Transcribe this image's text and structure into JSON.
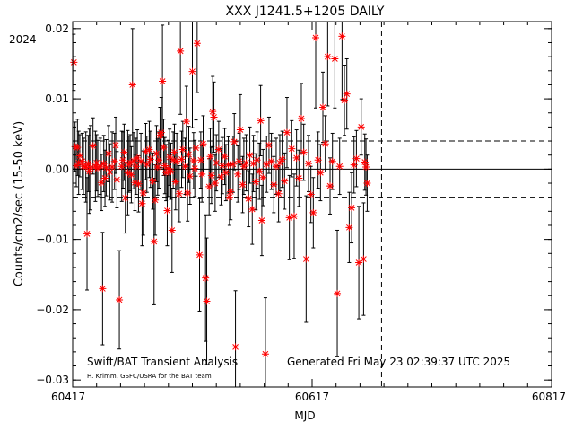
{
  "chart_data": {
    "type": "scatter",
    "title": "XXX J1241.5+1205 DAILY",
    "xlabel": "MJD",
    "ylabel": "Counts/cm2/sec (15-50 keV)",
    "year_label": "2024",
    "xlim": [
      60417,
      60817
    ],
    "ylim": [
      -0.031,
      0.021
    ],
    "x_ticks": [
      60417,
      60617,
      60817
    ],
    "y_ticks": [
      -0.03,
      -0.02,
      -0.01,
      0.0,
      0.01,
      0.02
    ],
    "y_tick_labels": [
      "−0.03",
      "−0.02",
      "−0.01",
      "0.00",
      "0.01",
      "0.02"
    ],
    "mean_line": 0.0,
    "sigma_lines": [
      0.004,
      -0.004
    ],
    "vertical_marker_mjd": 60675,
    "footer_left": "Swift/BAT Transient Analysis",
    "footer_credit": "H. Krimm, GSFC/USRA for the BAT team",
    "footer_right": "Generated Fri May 23 02:39:37 UTC 2025",
    "colors": {
      "points": "#ff0000",
      "errorbars": "#000000"
    },
    "series": [
      {
        "points": [
          [
            60418,
            0.0152,
            0.004
          ],
          [
            60419,
            0.0032,
            0.0035
          ],
          [
            60420,
            0.0005,
            0.003
          ],
          [
            60421,
            0.0031,
            0.004
          ],
          [
            60422,
            0.0009,
            0.0045
          ],
          [
            60423,
            0.0019,
            0.003
          ],
          [
            60425,
            0.0011,
            0.004
          ],
          [
            60426,
            0.0004,
            0.004
          ],
          [
            60428,
            0.0003,
            0.005
          ],
          [
            60429,
            -0.0092,
            0.008
          ],
          [
            60430,
            0.0008,
            0.004
          ],
          [
            60431,
            -0.0003,
            0.006
          ],
          [
            60432,
            0.0002,
            0.006
          ],
          [
            60434,
            0.0033,
            0.004
          ],
          [
            60436,
            0.0004,
            0.005
          ],
          [
            60437,
            0.0009,
            0.004
          ],
          [
            60438,
            0.0001,
            0.004
          ],
          [
            60440,
            0.0004,
            0.004
          ],
          [
            60441,
            -0.0019,
            0.004
          ],
          [
            60442,
            -0.017,
            0.008
          ],
          [
            60443,
            0.0008,
            0.004
          ],
          [
            60444,
            -0.0013,
            0.004
          ],
          [
            60445,
            0.0002,
            0.004
          ],
          [
            60447,
            0.0022,
            0.004
          ],
          [
            60448,
            -0.0004,
            0.004
          ],
          [
            60450,
            0.0003,
            0.005
          ],
          [
            60452,
            0.0011,
            0.004
          ],
          [
            60453,
            0.0034,
            0.004
          ],
          [
            60454,
            -0.0015,
            0.004
          ],
          [
            60456,
            -0.0186,
            0.007
          ],
          [
            60458,
            0.0004,
            0.005
          ],
          [
            60459,
            0.0013,
            0.004
          ],
          [
            60460,
            0.0024,
            0.004
          ],
          [
            60461,
            -0.0041,
            0.005
          ],
          [
            60463,
            -0.0005,
            0.006
          ],
          [
            60464,
            0.0007,
            0.004
          ],
          [
            60465,
            0.0009,
            0.004
          ],
          [
            60466,
            -0.0008,
            0.004
          ],
          [
            60467,
            0.012,
            0.008
          ],
          [
            60468,
            0.0012,
            0.004
          ],
          [
            60469,
            -0.0019,
            0.004
          ],
          [
            60470,
            0.0004,
            0.004
          ],
          [
            60471,
            0.0016,
            0.004
          ],
          [
            60472,
            -0.0021,
            0.004
          ],
          [
            60474,
            0.0011,
            0.004
          ],
          [
            60475,
            -0.0049,
            0.006
          ],
          [
            60476,
            -0.0034,
            0.006
          ],
          [
            60478,
            0.0025,
            0.004
          ],
          [
            60479,
            0.0007,
            0.004
          ],
          [
            60481,
            0.0028,
            0.004
          ],
          [
            60482,
            0.0014,
            0.004
          ],
          [
            60484,
            -0.0017,
            0.004
          ],
          [
            60485,
            -0.0103,
            0.009
          ],
          [
            60486,
            -0.0044,
            0.005
          ],
          [
            60487,
            0.0022,
            0.004
          ],
          [
            60488,
            0.0003,
            0.004
          ],
          [
            60489,
            0.0013,
            0.004
          ],
          [
            60490,
            0.0048,
            0.004
          ],
          [
            60491,
            0.0052,
            0.005
          ],
          [
            60492,
            0.0125,
            0.008
          ],
          [
            60493,
            0.0031,
            0.004
          ],
          [
            60494,
            0.0005,
            0.004
          ],
          [
            60495,
            -0.0005,
            0.004
          ],
          [
            60496,
            -0.0059,
            0.005
          ],
          [
            60497,
            0.0001,
            0.004
          ],
          [
            60498,
            0.0017,
            0.004
          ],
          [
            60499,
            -0.0003,
            0.004
          ],
          [
            60500,
            -0.0087,
            0.006
          ],
          [
            60501,
            0.0013,
            0.004
          ],
          [
            60502,
            0.0024,
            0.004
          ],
          [
            60503,
            -0.0018,
            0.004
          ],
          [
            60504,
            0.0011,
            0.004
          ],
          [
            60506,
            -0.0035,
            0.004
          ],
          [
            60507,
            0.0168,
            0.009
          ],
          [
            60508,
            0.0014,
            0.004
          ],
          [
            60509,
            0.0028,
            0.004
          ],
          [
            60511,
            0.0004,
            0.004
          ],
          [
            60512,
            0.0068,
            0.005
          ],
          [
            60513,
            -0.0034,
            0.004
          ],
          [
            60514,
            0.0021,
            0.004
          ],
          [
            60515,
            -0.001,
            0.004
          ],
          [
            60517,
            0.0139,
            0.008
          ],
          [
            60518,
            0.0012,
            0.004
          ],
          [
            60519,
            0.0001,
            0.004
          ],
          [
            60520,
            0.003,
            0.004
          ],
          [
            60521,
            0.0179,
            0.007
          ],
          [
            60523,
            -0.0122,
            0.008
          ],
          [
            60524,
            0.0013,
            0.004
          ],
          [
            60525,
            -0.0007,
            0.004
          ],
          [
            60526,
            0.0036,
            0.004
          ],
          [
            60528,
            -0.0155,
            0.009
          ],
          [
            60529,
            -0.0188,
            0.009
          ],
          [
            60531,
            -0.0025,
            0.004
          ],
          [
            60532,
            0.0018,
            0.004
          ],
          [
            60533,
            -0.0009,
            0.004
          ],
          [
            60534,
            0.0082,
            0.005
          ],
          [
            60535,
            0.0074,
            0.005
          ],
          [
            60536,
            -0.002,
            0.004
          ],
          [
            60537,
            0.0009,
            0.004
          ],
          [
            60539,
            0.0028,
            0.004
          ],
          [
            60541,
            -0.0011,
            0.004
          ],
          [
            60542,
            0.0005,
            0.004
          ],
          [
            60544,
            0.0018,
            0.004
          ],
          [
            60545,
            -0.0005,
            0.004
          ],
          [
            60547,
            0.0006,
            0.004
          ],
          [
            60548,
            -0.004,
            0.004
          ],
          [
            60549,
            -0.0032,
            0.004
          ],
          [
            60551,
            0.0007,
            0.004
          ],
          [
            60552,
            0.0039,
            0.004
          ],
          [
            60553,
            -0.0253,
            0.008
          ],
          [
            60555,
            -0.0007,
            0.004
          ],
          [
            60556,
            0.0011,
            0.004
          ],
          [
            60557,
            0.0056,
            0.005
          ],
          [
            60559,
            -0.0022,
            0.004
          ],
          [
            60560,
            0.0004,
            0.004
          ],
          [
            60562,
            0.0009,
            0.004
          ],
          [
            60564,
            -0.0042,
            0.004
          ],
          [
            60565,
            0.002,
            0.004
          ],
          [
            60567,
            -0.0057,
            0.005
          ],
          [
            60568,
            0.0008,
            0.004
          ],
          [
            60570,
            -0.0018,
            0.004
          ],
          [
            60571,
            0.0013,
            0.004
          ],
          [
            60573,
            -0.0003,
            0.004
          ],
          [
            60574,
            0.0069,
            0.005
          ],
          [
            60575,
            -0.0073,
            0.005
          ],
          [
            60576,
            -0.0012,
            0.004
          ],
          [
            60578,
            -0.0263,
            0.008
          ],
          [
            60579,
            0.0007,
            0.004
          ],
          [
            60581,
            0.0034,
            0.004
          ],
          [
            60583,
            0.0011,
            0.004
          ],
          [
            60585,
            -0.0022,
            0.004
          ],
          [
            60587,
            0.0004,
            0.004
          ],
          [
            60589,
            -0.0035,
            0.004
          ],
          [
            60590,
            0.0009,
            0.004
          ],
          [
            60592,
            0.0014,
            0.004
          ],
          [
            60594,
            -0.0017,
            0.004
          ],
          [
            60596,
            0.0052,
            0.005
          ],
          [
            60598,
            -0.0069,
            0.006
          ],
          [
            60600,
            0.0029,
            0.004
          ],
          [
            60602,
            -0.0067,
            0.006
          ],
          [
            60604,
            0.0016,
            0.004
          ],
          [
            60606,
            -0.0013,
            0.004
          ],
          [
            60608,
            0.0072,
            0.005
          ],
          [
            60610,
            0.0024,
            0.004
          ],
          [
            60612,
            -0.0128,
            0.009
          ],
          [
            60614,
            0.0008,
            0.004
          ],
          [
            60616,
            -0.0036,
            0.004
          ],
          [
            60618,
            -0.0062,
            0.005
          ],
          [
            60620,
            0.0187,
            0.01
          ],
          [
            60622,
            0.0013,
            0.004
          ],
          [
            60624,
            -0.0005,
            0.004
          ],
          [
            60626,
            0.0088,
            0.005
          ],
          [
            60628,
            0.0036,
            0.004
          ],
          [
            60630,
            0.016,
            0.007
          ],
          [
            60632,
            -0.0024,
            0.004
          ],
          [
            60634,
            0.0011,
            0.004
          ],
          [
            60636,
            0.0157,
            0.007
          ],
          [
            60638,
            -0.0177,
            0.009
          ],
          [
            60640,
            0.0004,
            0.004
          ],
          [
            60642,
            0.0189,
            0.009
          ],
          [
            60644,
            0.0098,
            0.005
          ],
          [
            60646,
            0.0107,
            0.005
          ],
          [
            60648,
            -0.0083,
            0.005
          ],
          [
            60650,
            -0.0055,
            0.005
          ],
          [
            60652,
            0.0006,
            0.004
          ],
          [
            60654,
            0.0015,
            0.004
          ],
          [
            60656,
            -0.0133,
            0.008
          ],
          [
            60658,
            0.006,
            0.004
          ],
          [
            60660,
            -0.0128,
            0.008
          ],
          [
            60661,
            0.001,
            0.004
          ],
          [
            60662,
            0.0003,
            0.004
          ],
          [
            60663,
            -0.002,
            0.004
          ]
        ]
      }
    ]
  }
}
